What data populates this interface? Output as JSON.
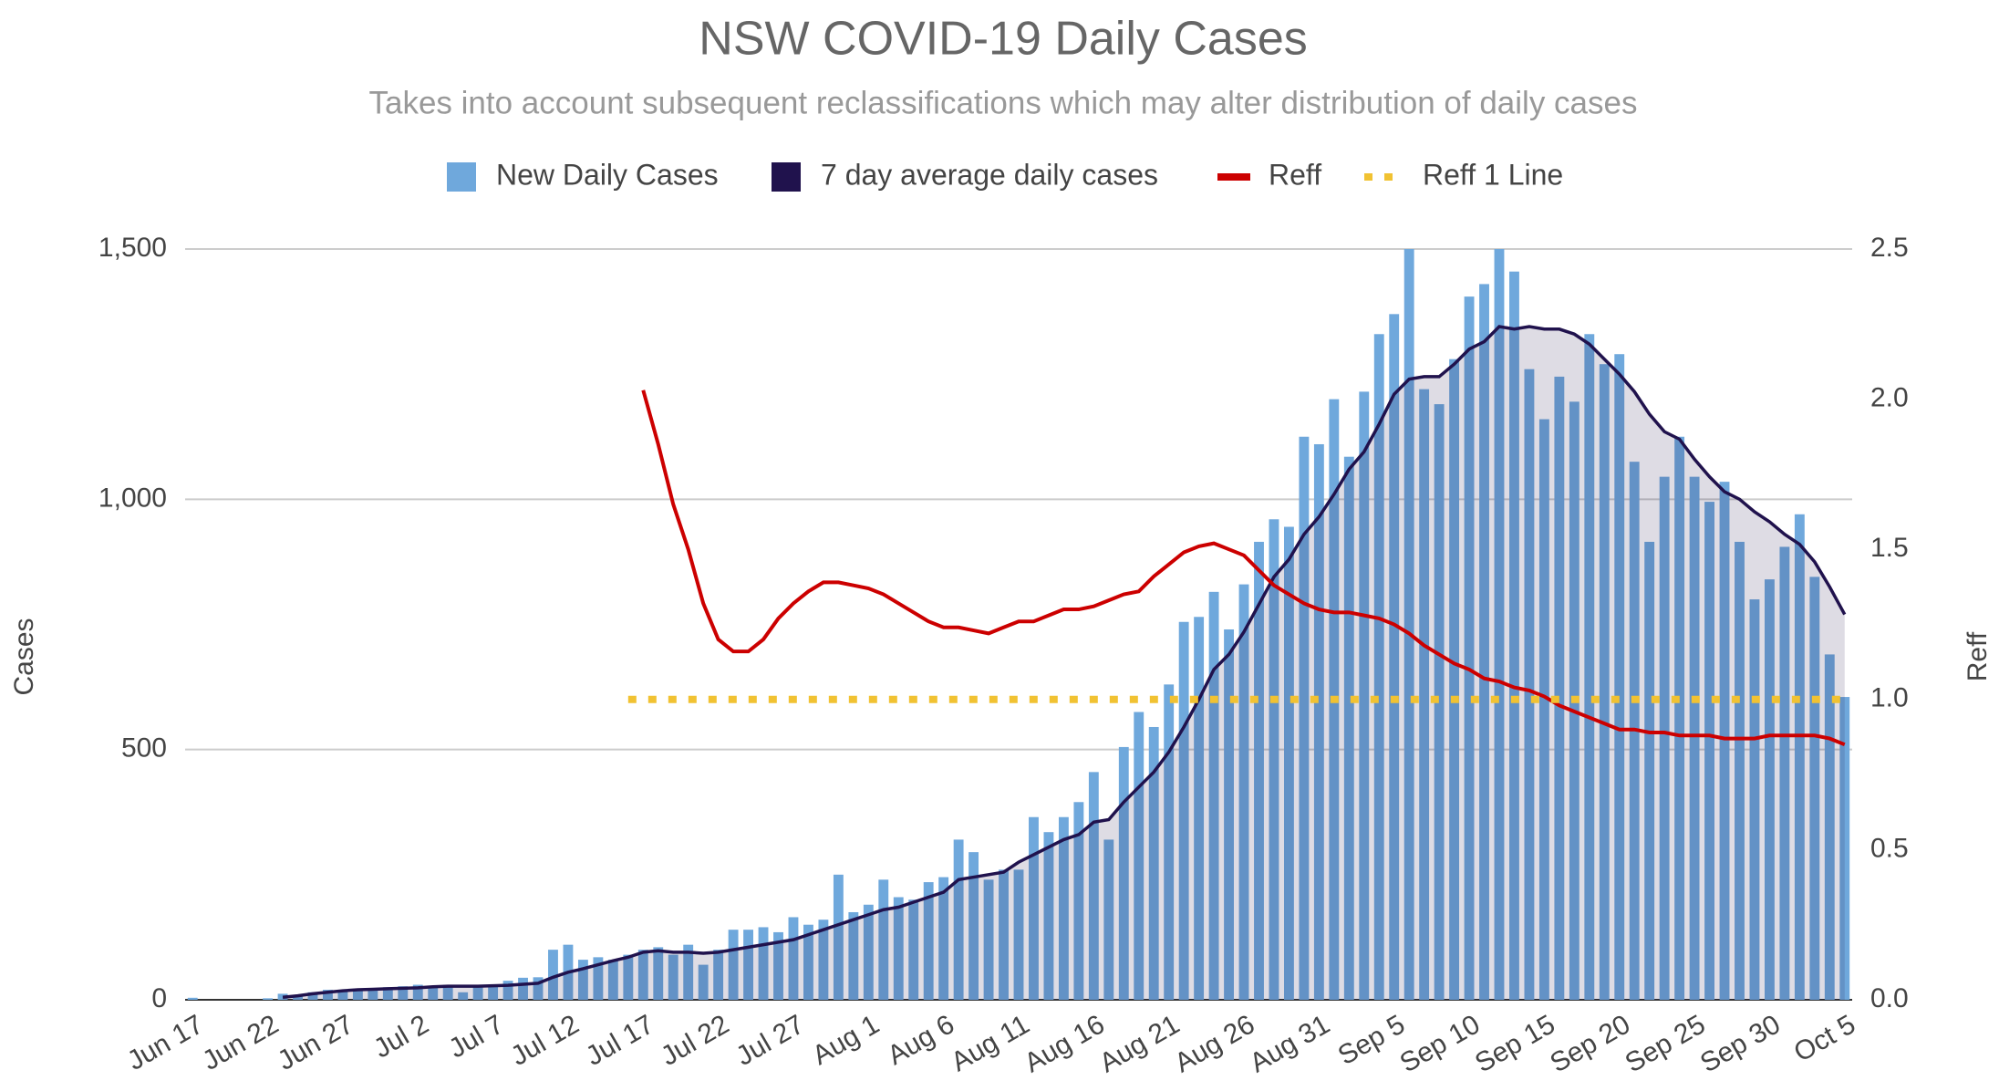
{
  "chart_data": {
    "type": "combo",
    "title": "NSW COVID-19 Daily Cases",
    "subtitle": "Takes into account subsequent reclassifications which may alter distribution of daily cases",
    "y_label": "Cases",
    "y2_label": "Reff",
    "categories": [
      "Jun 17",
      null,
      null,
      null,
      null,
      "Jun 22",
      null,
      null,
      null,
      null,
      "Jun 27",
      null,
      null,
      null,
      null,
      "Jul 2",
      null,
      null,
      null,
      null,
      "Jul 7",
      null,
      null,
      null,
      null,
      "Jul 12",
      null,
      null,
      null,
      null,
      "Jul 17",
      null,
      null,
      null,
      null,
      "Jul 22",
      null,
      null,
      null,
      null,
      "Jul 27",
      null,
      null,
      null,
      null,
      "Aug 1",
      null,
      null,
      null,
      null,
      "Aug 6",
      null,
      null,
      null,
      null,
      "Aug 11",
      null,
      null,
      null,
      null,
      "Aug 16",
      null,
      null,
      null,
      null,
      "Aug 21",
      null,
      null,
      null,
      null,
      "Aug 26",
      null,
      null,
      null,
      null,
      "Aug 31",
      null,
      null,
      null,
      null,
      "Sep 5",
      null,
      null,
      null,
      null,
      "Sep 10",
      null,
      null,
      null,
      null,
      "Sep 15",
      null,
      null,
      null,
      null,
      "Sep 20",
      null,
      null,
      null,
      null,
      "Sep 25",
      null,
      null,
      null,
      null,
      "Sep 30",
      null,
      null,
      null,
      null,
      "Oct 5"
    ],
    "series": [
      {
        "name": "New Daily Cases",
        "type": "bar",
        "color": "#6fa8dc",
        "values": [
          4,
          0,
          0,
          0,
          0,
          3,
          12,
          7,
          15,
          20,
          18,
          22,
          20,
          25,
          27,
          30,
          28,
          30,
          15,
          28,
          30,
          38,
          44,
          45,
          100,
          110,
          80,
          85,
          80,
          90,
          100,
          105,
          90,
          110,
          70,
          100,
          140,
          140,
          145,
          135,
          165,
          150,
          160,
          250,
          175,
          190,
          240,
          205,
          200,
          235,
          245,
          320,
          295,
          240,
          260,
          260,
          365,
          335,
          365,
          395,
          455,
          320,
          505,
          575,
          545,
          630,
          755,
          765,
          815,
          740,
          830,
          915,
          960,
          945,
          1125,
          1110,
          1200,
          1085,
          1215,
          1330,
          1370,
          1500,
          1220,
          1190,
          1280,
          1405,
          1430,
          1500,
          1455,
          1260,
          1160,
          1245,
          1195,
          1330,
          1270,
          1290,
          1075,
          915,
          1045,
          1125,
          1045,
          995,
          1035,
          915,
          800,
          840,
          905,
          970,
          845,
          690,
          605
        ]
      },
      {
        "name": "7 day average daily cases",
        "type": "area",
        "color": "#20124d",
        "values": [
          null,
          null,
          null,
          null,
          null,
          null,
          5,
          8,
          12,
          15,
          18,
          20,
          21,
          22,
          23,
          24,
          26,
          27,
          27,
          27,
          28,
          29,
          31,
          33,
          45,
          55,
          62,
          70,
          78,
          85,
          95,
          98,
          95,
          95,
          93,
          95,
          100,
          105,
          110,
          115,
          120,
          130,
          140,
          150,
          160,
          170,
          180,
          185,
          195,
          205,
          215,
          240,
          245,
          250,
          255,
          275,
          290,
          305,
          320,
          330,
          355,
          360,
          395,
          425,
          455,
          495,
          545,
          600,
          660,
          690,
          735,
          790,
          845,
          880,
          930,
          965,
          1010,
          1060,
          1095,
          1150,
          1210,
          1240,
          1245,
          1245,
          1270,
          1300,
          1315,
          1345,
          1340,
          1345,
          1340,
          1340,
          1330,
          1310,
          1280,
          1250,
          1215,
          1170,
          1135,
          1120,
          1080,
          1045,
          1015,
          1000,
          975,
          955,
          930,
          910,
          875,
          825,
          770
        ]
      },
      {
        "name": "Reff",
        "type": "line",
        "axis": "y2",
        "color": "#cc0000",
        "values": [
          null,
          null,
          null,
          null,
          null,
          null,
          null,
          null,
          null,
          null,
          null,
          null,
          null,
          null,
          null,
          null,
          null,
          null,
          null,
          null,
          null,
          null,
          null,
          null,
          null,
          null,
          null,
          null,
          null,
          null,
          2.03,
          1.85,
          1.65,
          1.5,
          1.32,
          1.2,
          1.16,
          1.16,
          1.2,
          1.27,
          1.32,
          1.36,
          1.39,
          1.39,
          1.38,
          1.37,
          1.35,
          1.32,
          1.29,
          1.26,
          1.24,
          1.24,
          1.23,
          1.22,
          1.24,
          1.26,
          1.26,
          1.28,
          1.3,
          1.3,
          1.31,
          1.33,
          1.35,
          1.36,
          1.41,
          1.45,
          1.49,
          1.51,
          1.52,
          1.5,
          1.48,
          1.43,
          1.38,
          1.35,
          1.32,
          1.3,
          1.29,
          1.29,
          1.28,
          1.27,
          1.25,
          1.22,
          1.18,
          1.15,
          1.12,
          1.1,
          1.07,
          1.06,
          1.04,
          1.03,
          1.01,
          0.98,
          0.96,
          0.94,
          0.92,
          0.9,
          0.9,
          0.89,
          0.89,
          0.88,
          0.88,
          0.88,
          0.87,
          0.87,
          0.87,
          0.88,
          0.88,
          0.88,
          0.88,
          0.87,
          0.85
        ]
      },
      {
        "name": "Reff 1 Line",
        "type": "line",
        "axis": "y2",
        "dotted": true,
        "color": "#f1c232",
        "values": [
          null,
          null,
          null,
          null,
          null,
          null,
          null,
          null,
          null,
          null,
          null,
          null,
          null,
          null,
          null,
          null,
          null,
          null,
          null,
          null,
          null,
          null,
          null,
          null,
          null,
          null,
          null,
          null,
          null,
          1,
          1,
          1,
          1,
          1,
          1,
          1,
          1,
          1,
          1,
          1,
          1,
          1,
          1,
          1,
          1,
          1,
          1,
          1,
          1,
          1,
          1,
          1,
          1,
          1,
          1,
          1,
          1,
          1,
          1,
          1,
          1,
          1,
          1,
          1,
          1,
          1,
          1,
          1,
          1,
          1,
          1,
          1,
          1,
          1,
          1,
          1,
          1,
          1,
          1,
          1,
          1,
          1,
          1,
          1,
          1,
          1,
          1,
          1,
          1,
          1,
          1,
          1,
          1,
          1,
          1,
          1,
          1,
          1,
          1,
          1,
          1,
          1,
          1,
          1,
          1,
          1,
          1,
          1,
          1,
          1,
          1
        ]
      }
    ],
    "ylim": [
      0,
      1500
    ],
    "yticks": [
      0,
      500,
      {
        "value": 1000,
        "label": "1,000"
      },
      {
        "value": 1500,
        "label": "1,500"
      }
    ],
    "y2lim": [
      0,
      2.5
    ],
    "y2ticks": [
      {
        "value": 0,
        "label": "0.0"
      },
      0.5,
      {
        "value": 1,
        "label": "1.0"
      },
      1.5,
      {
        "value": 2,
        "label": "2.0"
      },
      2.5
    ],
    "grid": true,
    "legend": "top"
  }
}
